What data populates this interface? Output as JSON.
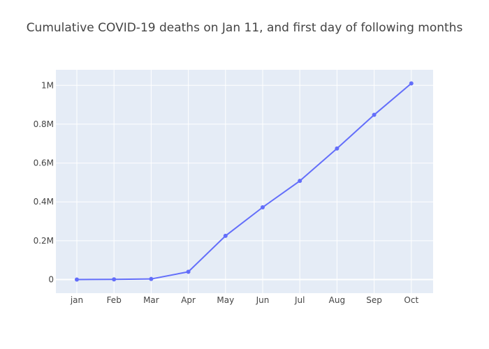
{
  "chart_data": {
    "type": "line",
    "title": "Cumulative COVID-19 deaths on Jan 11, and first day of following months",
    "categories": [
      "jan",
      "Feb",
      "Mar",
      "Apr",
      "May",
      "Jun",
      "Jul",
      "Aug",
      "Sep",
      "Oct"
    ],
    "series": [
      {
        "values": [
          1,
          1000,
          3000,
          40000,
          225000,
          372000,
          508000,
          675000,
          848000,
          1010000
        ]
      }
    ],
    "ylim": [
      -70000,
      1080000
    ],
    "yticks": [
      {
        "value": 0,
        "label": "0"
      },
      {
        "value": 200000,
        "label": "0.2M"
      },
      {
        "value": 400000,
        "label": "0.4M"
      },
      {
        "value": 600000,
        "label": "0.6M"
      },
      {
        "value": 800000,
        "label": "0.8M"
      },
      {
        "value": 1000000,
        "label": "1M"
      }
    ],
    "grid": true,
    "colors": {
      "plot_background": "#e5ecf6",
      "grid": "#ffffff",
      "line": "#636efa",
      "text": "#444444"
    }
  }
}
